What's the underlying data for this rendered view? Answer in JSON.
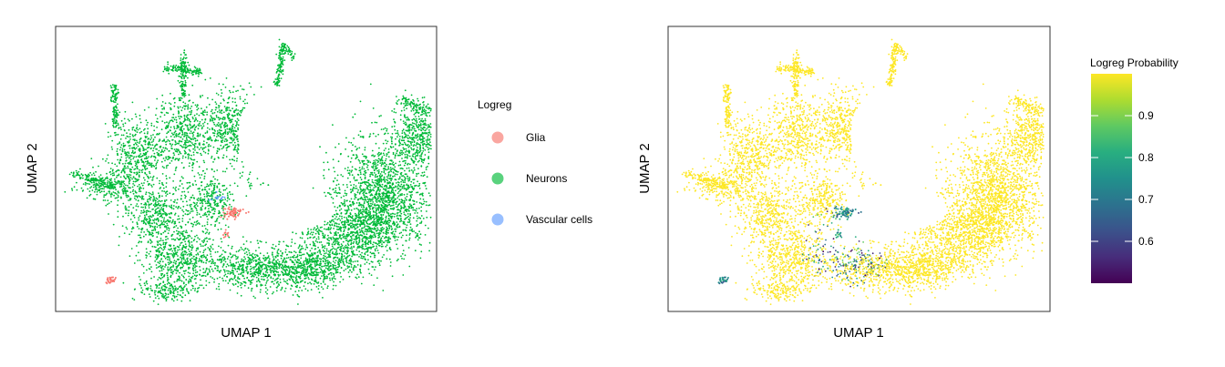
{
  "chart_data": [
    {
      "type": "scatter",
      "title": "",
      "xlabel": "UMAP 1",
      "ylabel": "UMAP 2",
      "grid": false,
      "axis_ticks": false,
      "legend": {
        "title": "Logreg",
        "placement": "right",
        "entries": [
          {
            "label": "Glia",
            "color": "#f8766d"
          },
          {
            "label": "Neurons",
            "color": "#00ba38"
          },
          {
            "label": "Vascular cells",
            "color": "#619cff"
          }
        ]
      },
      "series": [
        {
          "name": "Glia",
          "color": "#f8766d"
        },
        {
          "name": "Neurons",
          "color": "#00ba38"
        },
        {
          "name": "Vascular cells",
          "color": "#619cff"
        }
      ]
    },
    {
      "type": "scatter",
      "title": "",
      "xlabel": "UMAP 1",
      "ylabel": "UMAP 2",
      "grid": false,
      "axis_ticks": false,
      "colorbar": {
        "title": "Logreg Probability",
        "colormap": "viridis",
        "range": [
          0.5,
          1.0
        ],
        "ticks": [
          "0.6",
          "0.7",
          "0.8",
          "0.9"
        ],
        "tick_values": [
          0.6,
          0.7,
          0.8,
          0.9
        ],
        "placement": "right"
      }
    }
  ]
}
